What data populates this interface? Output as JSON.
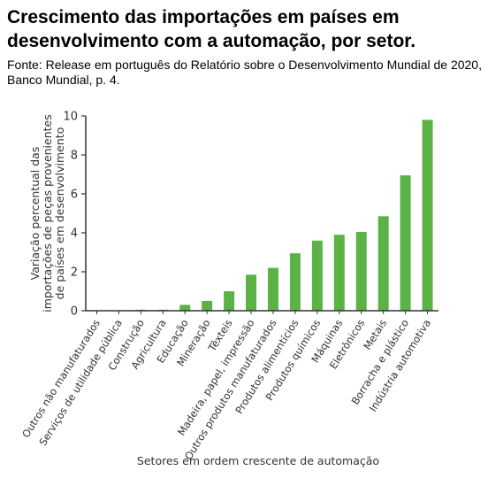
{
  "header": {
    "title": "Crescimento das importações em países em desenvolvimento com a automação, por setor.",
    "source": "Fonte: Release em português do Relatório sobre o Desenvolvimento Mundial de 2020, Banco Mundial, p. 4."
  },
  "colors": {
    "bar": "#5bb346",
    "axis": "#333333",
    "text": "#333333"
  },
  "chart_data": {
    "type": "bar",
    "categories": [
      "Outros não manufaturados",
      "Serviços de utilidade pública",
      "Construção",
      "Agricultura",
      "Educação",
      "Mineração",
      "Têxteis",
      "Madeira, papel, impressão",
      "Outros produtos manufaturados",
      "Produtos alimentícios",
      "Produtos químicos",
      "Máquinas",
      "Eletrônicos",
      "Metais",
      "Borracha e plástico",
      "Indústria automotiva"
    ],
    "values": [
      0.0,
      0.0,
      0.05,
      0.05,
      0.3,
      0.5,
      1.0,
      1.85,
      2.2,
      2.95,
      3.6,
      3.9,
      4.05,
      4.85,
      6.95,
      9.8
    ],
    "ylabel": "Variação percentual das importações de peças provenientes de países em desenvolvimento",
    "xlabel": "Setores em ordem crescente de automação",
    "ylim": [
      0,
      10
    ],
    "yticks": [
      0,
      2,
      4,
      6,
      8,
      10
    ],
    "grid": false
  }
}
